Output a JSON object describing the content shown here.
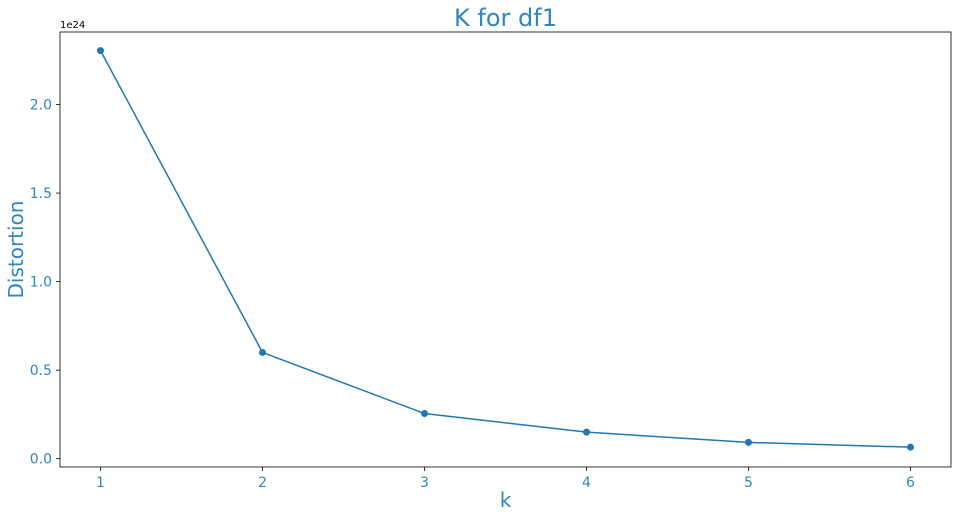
{
  "chart_data": {
    "type": "line",
    "title": "K for df1",
    "xlabel": "k",
    "ylabel": "Distortion",
    "y_offset_label": "1e24",
    "x": [
      1,
      2,
      3,
      4,
      5,
      6
    ],
    "series": [
      {
        "values": [
          2.305e+24,
          6e+23,
          2.55e+23,
          1.5e+23,
          9.2e+22,
          6.5e+22
        ],
        "color": "#1f77b4",
        "marker": "circle"
      }
    ],
    "xticks": [
      1,
      2,
      3,
      4,
      5,
      6
    ],
    "xtick_labels": [
      "1",
      "2",
      "3",
      "4",
      "5",
      "6"
    ],
    "yticks": [
      0,
      5e+23,
      1e+24,
      1.5e+24,
      2e+24
    ],
    "ytick_labels": [
      "0.0",
      "0.5",
      "1.0",
      "1.5",
      "2.0"
    ],
    "xlim": [
      0.75,
      6.25
    ],
    "ylim": [
      -4.7e+22,
      2.41e+24
    ],
    "grid": false,
    "colors": {
      "line": "#1f77b4",
      "text": "#2e86c1",
      "axes": "#000000"
    }
  }
}
